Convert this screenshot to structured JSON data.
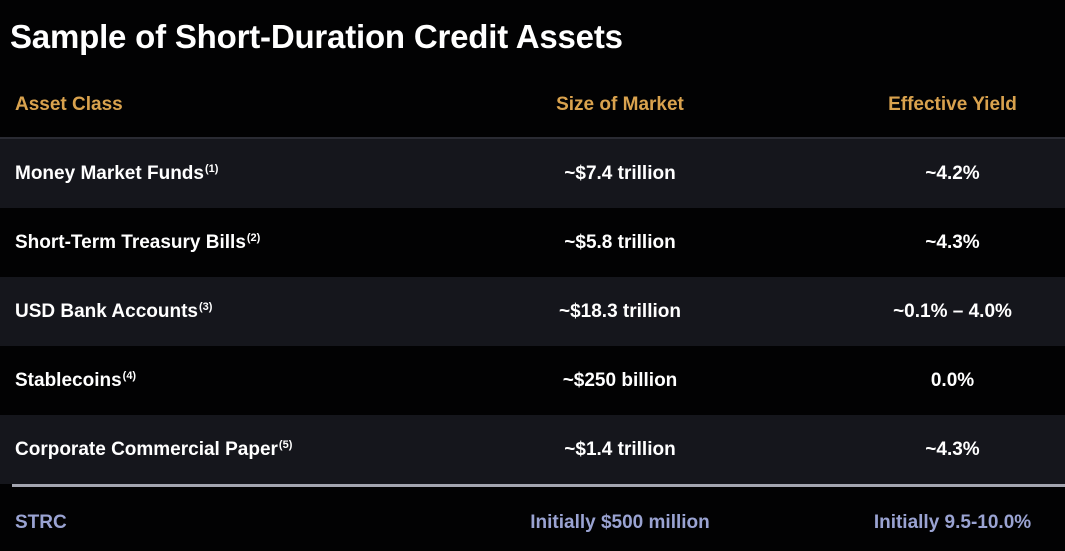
{
  "title": "Sample of Short-Duration Credit Assets",
  "header": {
    "asset_class": "Asset Class",
    "size_of_market": "Size of Market",
    "effective_yield": "Effective Yield"
  },
  "rows": [
    {
      "asset": "Money Market Funds",
      "note": "(1)",
      "size": "~$7.4 trillion",
      "yield": "~4.2%"
    },
    {
      "asset": "Short-Term Treasury Bills",
      "note": "(2)",
      "size": "~$5.8 trillion",
      "yield": "~4.3%"
    },
    {
      "asset": "USD Bank Accounts",
      "note": "(3)",
      "size": "~$18.3 trillion",
      "yield": "~0.1% – 4.0%"
    },
    {
      "asset": "Stablecoins",
      "note": "(4)",
      "size": "~$250 billion",
      "yield": "0.0%"
    },
    {
      "asset": "Corporate Commercial Paper",
      "note": "(5)",
      "size": "~$1.4 trillion",
      "yield": "~4.3%"
    }
  ],
  "strc": {
    "asset": "STRC",
    "size": "Initially $500 million",
    "yield": "Initially 9.5-10.0%"
  },
  "colors": {
    "background": "#020203",
    "header_text": "#d9a24e",
    "row_shade": "#15161c",
    "strc_text": "#9aa3d2"
  }
}
